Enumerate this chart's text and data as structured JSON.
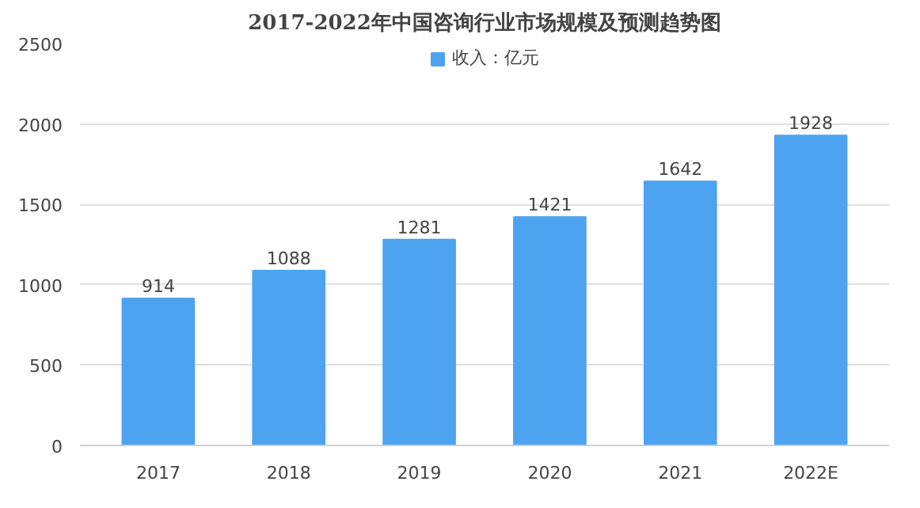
{
  "chart_data": {
    "type": "bar",
    "title": "2017-2022年中国咨询行业市场规模及预测趋势图",
    "categories": [
      "2017",
      "2018",
      "2019",
      "2020",
      "2021",
      "2022E"
    ],
    "series": [
      {
        "name": "收入：亿元",
        "color": "#4da3f0",
        "values": [
          914,
          1088,
          1281,
          1421,
          1642,
          1928
        ]
      }
    ],
    "ylim": [
      0,
      2500
    ],
    "yticks": [
      0,
      500,
      1000,
      1500,
      2000,
      2500
    ],
    "grid": "y",
    "legend": "top",
    "data_labels": true
  }
}
